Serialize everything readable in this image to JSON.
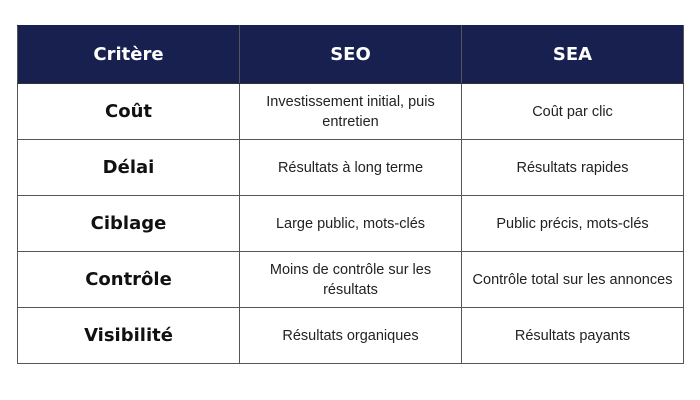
{
  "table": {
    "headers": [
      "Critère",
      "SEO",
      "SEA"
    ],
    "header_color": "#17204f",
    "rows": [
      [
        "Coût",
        "Investissement initial, puis entretien",
        "Coût par clic"
      ],
      [
        "Délai",
        "Résultats à long terme",
        "Résultats rapides"
      ],
      [
        "Ciblage",
        "Large public, mots-clés",
        "Public précis, mots-clés"
      ],
      [
        "Contrôle",
        "Moins de contrôle sur les résultats",
        "Contrôle total sur les annonces"
      ],
      [
        "Visibilité",
        "Résultats organiques",
        "Résultats payants"
      ]
    ]
  }
}
